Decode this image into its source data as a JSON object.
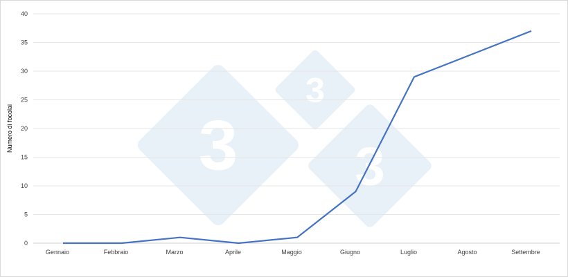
{
  "chart_data": {
    "type": "line",
    "categories": [
      "Gennaio",
      "Febbraio",
      "Marzo",
      "Aprile",
      "Maggio",
      "Giugno",
      "Luglio",
      "Agosto",
      "Settembre"
    ],
    "series": [
      {
        "values": [
          0,
          0,
          1,
          0,
          1,
          9,
          29,
          33,
          37
        ],
        "color": "#4472c4"
      }
    ],
    "xlabel": "",
    "ylabel": "Numero di focolai",
    "ylim": [
      0,
      40
    ],
    "yticks": [
      0,
      5,
      10,
      15,
      20,
      25,
      30,
      35,
      40
    ],
    "grid": true,
    "legend": "none"
  },
  "watermark": {
    "text": "3",
    "color": "#e8f0f8"
  }
}
